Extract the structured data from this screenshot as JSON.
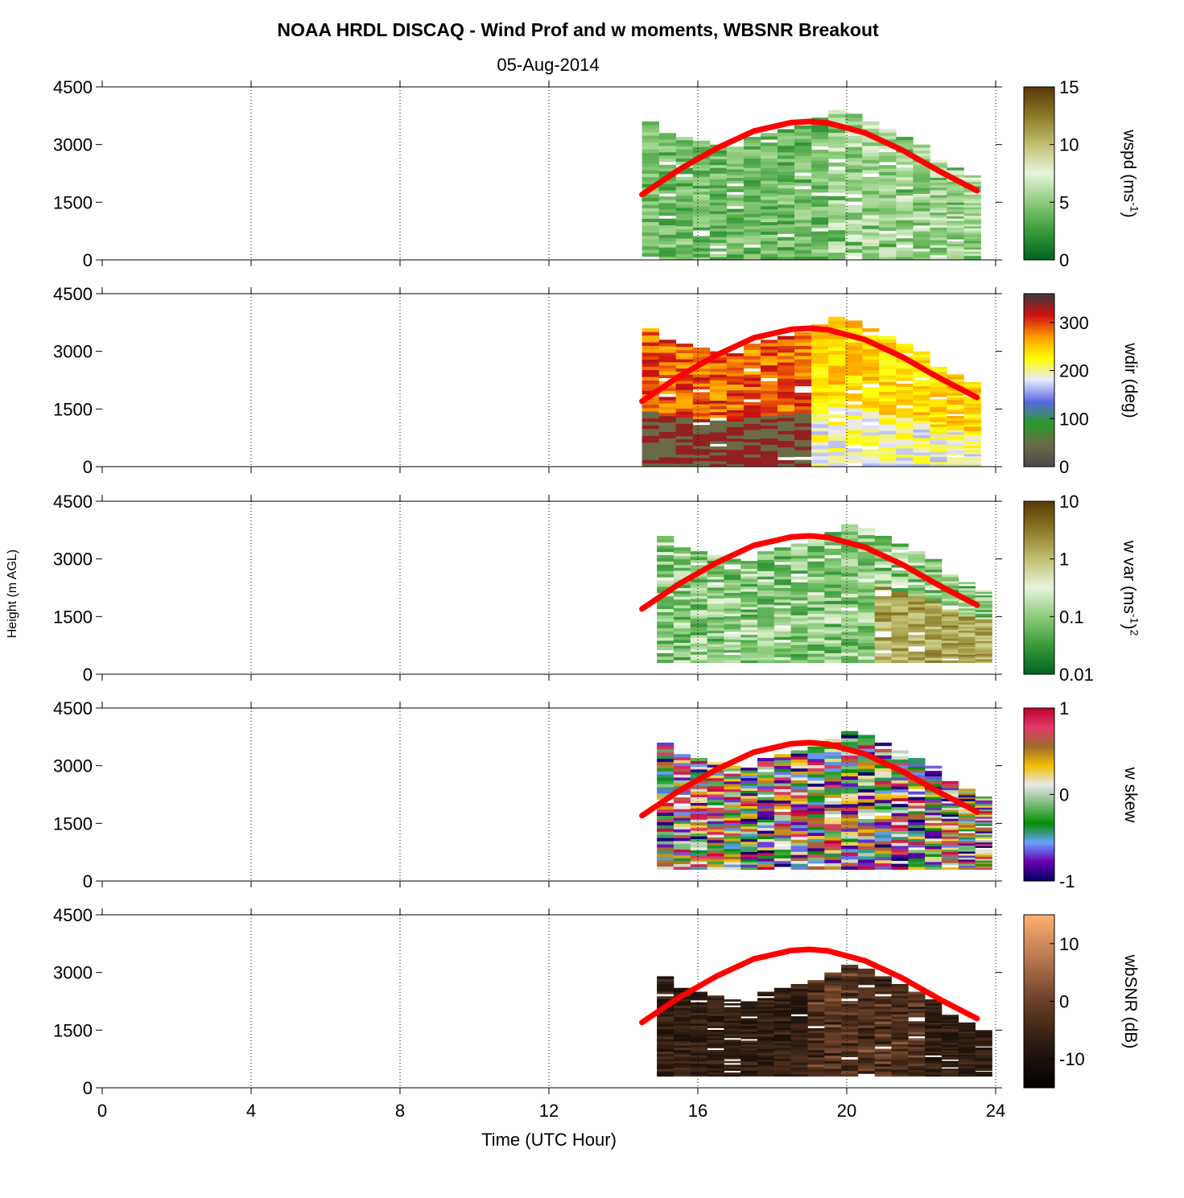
{
  "title": "NOAA HRDL DISCAQ - Wind Prof and w moments, WBSNR Breakout",
  "subtitle": "05-Aug-2014",
  "chart_data": {
    "type": "heatmap",
    "xlabel": "Time (UTC Hour)",
    "ylabel": "Height (m AGL)",
    "xlim": [
      0,
      24
    ],
    "ylim": [
      0,
      4500
    ],
    "xticks": [
      "0",
      "4",
      "8",
      "12",
      "16",
      "20",
      "24"
    ],
    "yticks": [
      "0",
      "1500",
      "3000",
      "4500"
    ],
    "grid": "vertical dotted lines every 4 h",
    "overlay_line": {
      "color": "#ff0000",
      "x": [
        14.5,
        15.5,
        16.5,
        17.5,
        18.5,
        19.0,
        19.5,
        20.5,
        21.5,
        22.5,
        23.5
      ],
      "y": [
        1700,
        2350,
        2900,
        3350,
        3570,
        3600,
        3560,
        3300,
        2850,
        2300,
        1800
      ]
    },
    "data_time_range": [
      14.5,
      23.6
    ],
    "panels": [
      {
        "name": "wspd",
        "colorbar_label": "wspd (ms-1)",
        "clim": [
          0,
          15
        ],
        "ticks": [
          "0",
          "5",
          "10",
          "15"
        ],
        "colormap": [
          "#006420",
          "#3a9a3a",
          "#8ccc7a",
          "#e8f4dc",
          "#c0c070",
          "#8a7a28",
          "#5a3806"
        ]
      },
      {
        "name": "wdir",
        "colorbar_label": "wdir (deg)",
        "clim": [
          0,
          360
        ],
        "ticks": [
          "0",
          "100",
          "200",
          "300"
        ],
        "colormap": [
          "#4a4a4a",
          "#6a6a46",
          "#2a9a2a",
          "#5a6ae0",
          "#e8e8ff",
          "#ffff00",
          "#ff9a00",
          "#d01010",
          "#3a3a3a"
        ]
      },
      {
        "name": "w var",
        "colorbar_label": "w var (ms-1)2",
        "clim": [
          0.01,
          10
        ],
        "scale": "log",
        "ticks": [
          "0.01",
          "0.1",
          "1",
          "10"
        ],
        "colormap": [
          "#006420",
          "#3a9a3a",
          "#8ccc7a",
          "#e8f4dc",
          "#c0c070",
          "#8a7a28",
          "#5a3806"
        ]
      },
      {
        "name": "w skew",
        "colorbar_label": "w skew",
        "clim": [
          -1,
          1
        ],
        "ticks": [
          "-1",
          "0",
          "1"
        ],
        "colormap": [
          "#000060",
          "#6a00b0",
          "#6aa0ff",
          "#009000",
          "#7aba7a",
          "#e8e8e8",
          "#f0c000",
          "#a06a30",
          "#e03a6a",
          "#c00030"
        ]
      },
      {
        "name": "wbSNR",
        "colorbar_label": "wbSNR (dB)",
        "clim": [
          -15,
          15
        ],
        "ticks": [
          "-10",
          "0",
          "10"
        ],
        "colormap": [
          "#000000",
          "#2a1a10",
          "#6a4028",
          "#b87850",
          "#ffb070"
        ]
      }
    ]
  }
}
